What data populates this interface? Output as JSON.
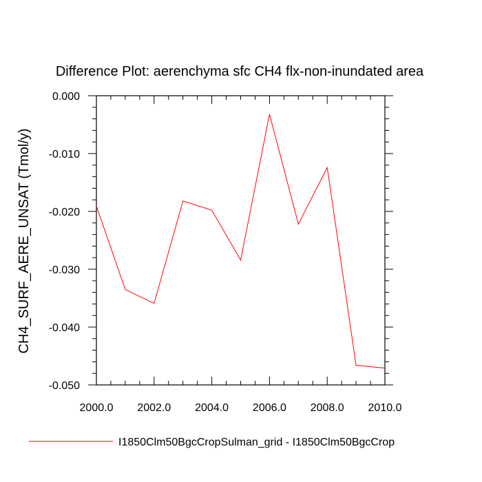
{
  "chart_data": {
    "type": "line",
    "title": "Difference Plot: aerenchyma sfc CH4 flx-non-inundated area",
    "xlabel": "",
    "ylabel": "CH4_SURF_AERE_UNSAT  (Tmol/y)",
    "xlim": [
      2000,
      2010
    ],
    "ylim": [
      -0.05,
      0.0
    ],
    "x_ticks": [
      "2000.0",
      "2002.0",
      "2004.0",
      "2006.0",
      "2008.0",
      "2010.0"
    ],
    "x_tick_values": [
      2000,
      2002,
      2004,
      2006,
      2008,
      2010
    ],
    "y_ticks": [
      "0.000",
      "-0.010",
      "-0.020",
      "-0.030",
      "-0.040",
      "-0.050"
    ],
    "y_tick_values": [
      0.0,
      -0.01,
      -0.02,
      -0.03,
      -0.04,
      -0.05
    ],
    "grid": false,
    "legend_position": "bottom",
    "series": [
      {
        "name": "I1850Clm50BgcCropSulman_grid - I1850Clm50BgcCrop",
        "color": "#ff0000",
        "x": [
          2000,
          2001,
          2002,
          2003,
          2004,
          2005,
          2006,
          2007,
          2008,
          2009,
          2010
        ],
        "values": [
          -0.0191,
          -0.0335,
          -0.0359,
          -0.0182,
          -0.0198,
          -0.0284,
          -0.0032,
          -0.0222,
          -0.0124,
          -0.0466,
          -0.0471
        ]
      }
    ]
  }
}
